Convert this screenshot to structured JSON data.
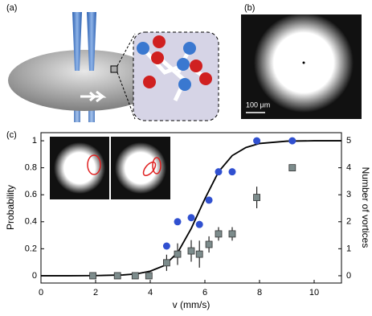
{
  "panels": {
    "a": {
      "label": "(a)"
    },
    "b": {
      "label": "(b)",
      "scale_bar": "100 μm"
    },
    "c": {
      "label": "(c)"
    }
  },
  "chart_data": {
    "type": "scatter",
    "x_label": "v (mm/s)",
    "y_label": "Probability",
    "y2_label": "Number of vortices",
    "xlim": [
      0,
      11
    ],
    "xticks": [
      0,
      2,
      4,
      6,
      8,
      10
    ],
    "ylim": [
      -0.054,
      1.06
    ],
    "yticks": [
      0,
      0.2,
      0.4,
      0.6,
      0.8,
      1
    ],
    "y2lim": [
      -0.27,
      5.3
    ],
    "y2ticks": [
      0,
      1,
      2,
      3,
      4,
      5
    ],
    "series": [
      {
        "marker": "line",
        "color": "#000000",
        "x": [
          0,
          1,
          2,
          3,
          3.5,
          4,
          4.5,
          5,
          5.5,
          6,
          6.5,
          7,
          7.5,
          8,
          9,
          10,
          11
        ],
        "values": [
          0,
          0,
          0.001,
          0.006,
          0.014,
          0.034,
          0.074,
          0.17,
          0.35,
          0.57,
          0.77,
          0.89,
          0.95,
          0.98,
          0.997,
          1,
          1
        ]
      },
      {
        "marker": "circle",
        "color": "#3050d0",
        "x": [
          4.6,
          5.0,
          5.5,
          5.8,
          6.15,
          6.5,
          7.0,
          7.9,
          9.2
        ],
        "values": [
          0.22,
          0.4,
          0.43,
          0.38,
          0.56,
          0.77,
          0.77,
          1,
          1
        ]
      },
      {
        "marker": "square",
        "color": "#7d8c8c",
        "axis": "y2",
        "x": [
          1.9,
          2.8,
          3.45,
          3.95,
          4.6,
          5.0,
          5.5,
          5.8,
          6.15,
          6.5,
          7.0,
          7.9,
          9.2
        ],
        "values": [
          0,
          0,
          0,
          0,
          0.48,
          0.8,
          0.92,
          0.8,
          1.16,
          1.55,
          1.55,
          2.9,
          4
        ],
        "errors": [
          0,
          0,
          0,
          0,
          0.3,
          0.4,
          0.4,
          0.5,
          0.3,
          0.25,
          0.25,
          0.4,
          0
        ]
      }
    ]
  }
}
